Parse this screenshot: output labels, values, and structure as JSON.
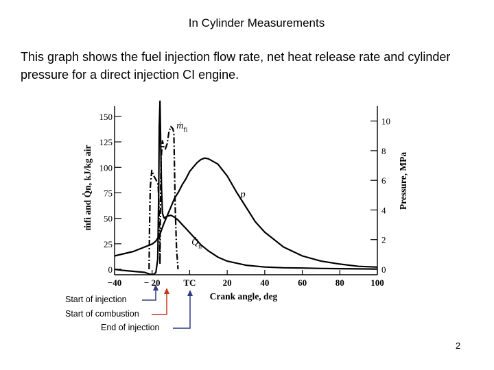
{
  "slide": {
    "title": "In Cylinder Measurements",
    "body": "This graph shows the fuel injection flow rate, net heat release rate and cylinder pressure for a direct injection CI engine.",
    "page_number": "2"
  },
  "annotations": {
    "start_of_injection": "Start of injection",
    "start_of_combustion": "Start of combustion",
    "end_of_injection": "End of injection",
    "colors": {
      "injection_start": "#2e3a80",
      "combustion_start": "#c0391b",
      "injection_end": "#2e3a80"
    }
  },
  "chart_data": {
    "type": "line",
    "title": "",
    "xlabel": "Crank angle, deg",
    "ylabel_left": "ṁfi and Q̇n, kJ/kg air",
    "ylabel_right": "Pressure, MPa",
    "xlim": [
      -40,
      100
    ],
    "ylim_left": [
      0,
      160
    ],
    "ylim_right": [
      0,
      11
    ],
    "x_ticks": [
      -40,
      -20,
      0,
      20,
      40,
      60,
      80,
      100
    ],
    "x_tick_labels": [
      "−40",
      "− 20",
      "TC",
      "20",
      "40",
      "60",
      "80",
      "100"
    ],
    "y_left_ticks": [
      0,
      25,
      50,
      75,
      100,
      125,
      150
    ],
    "y_left_tick_labels": [
      "0",
      "25",
      "50",
      "75",
      "100",
      "125",
      "150"
    ],
    "y_right_ticks": [
      0,
      2,
      4,
      6,
      8,
      10
    ],
    "y_right_tick_labels": [
      "0",
      "2",
      "4",
      "6",
      "8",
      "10"
    ],
    "series": [
      {
        "name": "ṁfi",
        "label": "ṁfi",
        "axis": "left",
        "style": "dashdot",
        "x": [
          -21.6,
          -21.4,
          -21.0,
          -20.2,
          -19.2,
          -18.0,
          -16.8,
          -16.3,
          -16.0,
          -15.8,
          -15.6,
          -15.2,
          -14.5,
          -13.8,
          -13.0,
          -12.0,
          -11.0,
          -10.0,
          -9.0,
          -8.4,
          -8.1,
          -7.7,
          -7.0,
          -6.2
        ],
        "y": [
          0,
          40,
          80,
          97,
          92,
          88,
          83,
          60,
          30,
          5,
          60,
          108,
          126,
          120,
          118,
          123,
          135,
          140,
          138,
          134,
          100,
          60,
          20,
          0
        ]
      },
      {
        "name": "Q̇n",
        "label": "Q̇n",
        "axis": "left",
        "style": "solid",
        "x": [
          -40,
          -36,
          -30,
          -24,
          -21,
          -19,
          -18,
          -17,
          -16.5,
          -16.2,
          -15.8,
          -15.4,
          -15.0,
          -14.5,
          -14.0,
          -13.5,
          -13.0,
          -12.0,
          -10.0,
          -8.0,
          -6.0,
          -4.0,
          -2.0,
          0,
          2,
          4,
          6,
          10,
          15,
          20,
          30,
          40,
          50,
          60,
          70,
          80,
          90,
          100
        ],
        "y": [
          0,
          -1,
          -2,
          -3,
          -5,
          -5,
          -3,
          10,
          75,
          140,
          165,
          120,
          80,
          55,
          52,
          50,
          51,
          52,
          53,
          51,
          48,
          44,
          40,
          36,
          32,
          28,
          24,
          18,
          12,
          8,
          4,
          2.2,
          1.5,
          1.2,
          0.8,
          0.6,
          0.4,
          0.2
        ]
      },
      {
        "name": "p",
        "label": "p",
        "axis": "right",
        "style": "solid",
        "x": [
          -40,
          -30,
          -20,
          -18,
          -16,
          -14,
          -12,
          -10,
          -8,
          -6,
          -4,
          -2,
          0,
          2,
          4,
          6,
          8,
          10,
          15,
          20,
          25,
          30,
          35,
          40,
          50,
          60,
          70,
          80,
          90,
          100
        ],
        "y": [
          0.9,
          1.2,
          1.7,
          1.9,
          2.3,
          3.0,
          3.6,
          4.2,
          4.8,
          5.2,
          5.7,
          6.1,
          6.6,
          6.9,
          7.2,
          7.4,
          7.5,
          7.45,
          7.1,
          6.3,
          5.2,
          4.2,
          3.2,
          2.5,
          1.5,
          0.9,
          0.55,
          0.35,
          0.2,
          0.15
        ]
      }
    ],
    "series_labels": {
      "mfi_main": "ṁ",
      "mfi_sub": "fi",
      "qn_main": "Q̇",
      "qn_sub": "n",
      "p": "p"
    }
  }
}
